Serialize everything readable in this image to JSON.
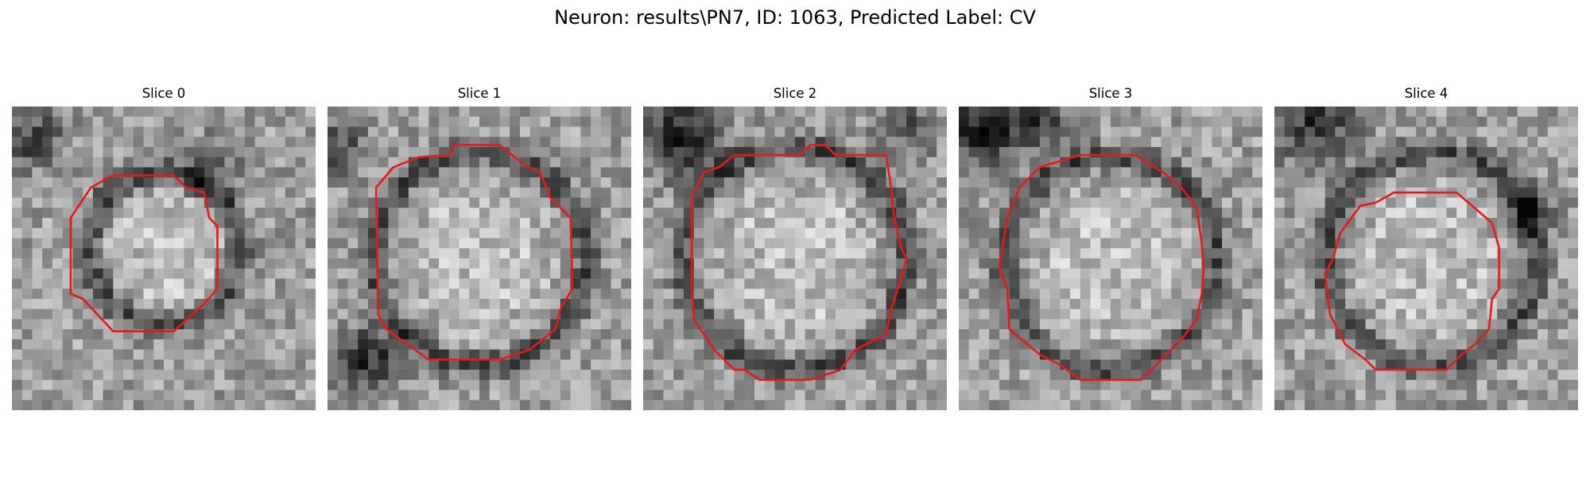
{
  "figure": {
    "title": "Neuron: results\\PN7, ID: 1063, Predicted Label: CV"
  },
  "colors": {
    "contour": "#e41a1c",
    "colormap": "gray"
  },
  "panels": [
    {
      "title": "Slice 0"
    },
    {
      "title": "Slice 1"
    },
    {
      "title": "Slice 2"
    },
    {
      "title": "Slice 3"
    },
    {
      "title": "Slice 4"
    }
  ]
}
